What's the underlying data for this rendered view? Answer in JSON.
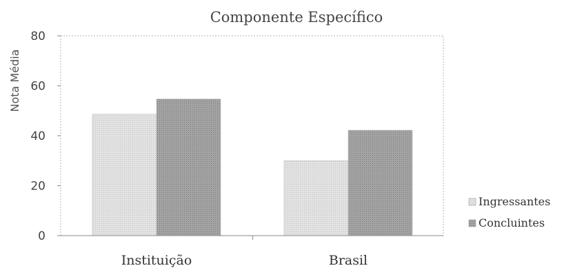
{
  "chart_data": {
    "type": "bar",
    "title": "Componente Específico",
    "ylabel": "Nota Média",
    "xlabel": "",
    "categories": [
      "Instituição",
      "Brasil"
    ],
    "series": [
      {
        "name": "Ingressantes",
        "values": [
          48.6,
          30.0
        ],
        "color": "#d6d6d6"
      },
      {
        "name": "Concluintes",
        "values": [
          54.7,
          42.2
        ],
        "color": "#9a9a9a"
      }
    ],
    "ylim": [
      0,
      80
    ],
    "yticks": [
      "0",
      "20",
      "40",
      "60",
      "80"
    ],
    "grid": false,
    "legend_position": "right"
  }
}
